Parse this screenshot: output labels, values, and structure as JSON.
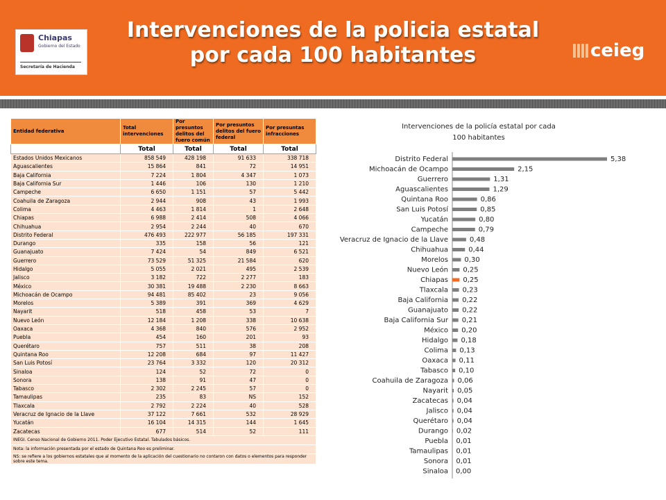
{
  "header": {
    "title": "Intervenciones de la policia estatal  por cada 100 habitantes",
    "logo_name": "Chiapas",
    "logo_subtitle": "Gobierno del Estado",
    "logo_department": "Secretaría de Hacienda",
    "brand": "ceieg"
  },
  "table": {
    "header": [
      "Entidad federativa",
      "Total intervenciones",
      "Por presuntos delitos del fuero común",
      "Por presuntos delitos del fuero federal",
      "Por presuntas infracciones"
    ],
    "subheader": [
      "Total",
      "Total",
      "Total",
      "Total"
    ],
    "rows": [
      [
        "Estados Unidos Mexicanos",
        "858 549",
        "428 198",
        "91 633",
        "338 718"
      ],
      [
        "Aguascalientes",
        "15 864",
        "841",
        "72",
        "14 951"
      ],
      [
        "Baja California",
        "7 224",
        "1 804",
        "4 347",
        "1 073"
      ],
      [
        "Baja California Sur",
        "1 446",
        "106",
        "130",
        "1 210"
      ],
      [
        "Campeche",
        "6 650",
        "1 151",
        "57",
        "5 442"
      ],
      [
        "Coahuila de Zaragoza",
        "2 944",
        "908",
        "43",
        "1 993"
      ],
      [
        "Colima",
        "4 463",
        "1 814",
        "1",
        "2 648"
      ],
      [
        "Chiapas",
        "6 988",
        "2 414",
        "508",
        "4 066"
      ],
      [
        "Chihuahua",
        "2 954",
        "2 244",
        "40",
        "670"
      ],
      [
        "Distrito Federal",
        "476 493",
        "222 977",
        "56 185",
        "197 331"
      ],
      [
        "Durango",
        "335",
        "158",
        "56",
        "121"
      ],
      [
        "Guanajuato",
        "7 424",
        "54",
        "849",
        "6 521"
      ],
      [
        "Guerrero",
        "73 529",
        "51 325",
        "21 584",
        "620"
      ],
      [
        "Hidalgo",
        "5 055",
        "2 021",
        "495",
        "2 539"
      ],
      [
        "Jalisco",
        "3 182",
        "722",
        "2 277",
        "183"
      ],
      [
        "México",
        "30 381",
        "19 488",
        "2 230",
        "8 663"
      ],
      [
        "Michoacán de Ocampo",
        "94 481",
        "85 402",
        "23",
        "9 056"
      ],
      [
        "Morelos",
        "5 389",
        "391",
        "369",
        "4 629"
      ],
      [
        "Nayarit",
        "518",
        "458",
        "53",
        "7"
      ],
      [
        "Nuevo León",
        "12 184",
        "1 208",
        "338",
        "10 638"
      ],
      [
        "Oaxaca",
        "4 368",
        "840",
        "576",
        "2 952"
      ],
      [
        "Puebla",
        "454",
        "160",
        "201",
        "93"
      ],
      [
        "Querétaro",
        "757",
        "511",
        "38",
        "208"
      ],
      [
        "Quintana Roo",
        "12 208",
        "684",
        "97",
        "11 427"
      ],
      [
        "San Luis Potosí",
        "23 764",
        "3 332",
        "120",
        "20 312"
      ],
      [
        "Sinaloa",
        "124",
        "52",
        "72",
        "0"
      ],
      [
        "Sonora",
        "138",
        "91",
        "47",
        "0"
      ],
      [
        "Tabasco",
        "2 302",
        "2 245",
        "57",
        "0"
      ],
      [
        "Tamaulipas",
        "235",
        "83",
        "NS",
        "152"
      ],
      [
        "Tlaxcala",
        "2 792",
        "2 224",
        "40",
        "528"
      ],
      [
        "Veracruz de Ignacio de la Llave",
        "37 122",
        "7 661",
        "532",
        "28 929"
      ],
      [
        "Yucatán",
        "16 104",
        "14 315",
        "144",
        "1 645"
      ],
      [
        "Zacatecas",
        "677",
        "514",
        "52",
        "111"
      ]
    ],
    "notes": [
      "INEGI. Censo Nacional de Gobierno 2011. Poder Ejecutivo Estatal. Tabulados básicos.",
      "Nota: la información presentada por el estado de Quintana Roo es preliminar.",
      "NS: se refiere a los gobiernos estatales que al momento de la aplicación del cuestionario no contaron con datos o elementos para responder sobre este tema."
    ]
  },
  "chart_data": {
    "type": "bar",
    "orientation": "horizontal",
    "title": "Intervenciones de la policía estatal  por cada 100 habitantes",
    "categories": [
      "Distrito Federal",
      "Michoacán de Ocampo",
      "Guerrero",
      "Aguascalientes",
      "Quintana Roo",
      "San Luis Potosí",
      "Yucatán",
      "Campeche",
      "Veracruz de Ignacio de la Llave",
      "Chihuahua",
      "Morelos",
      "Nuevo León",
      "Chiapas",
      "Tlaxcala",
      "Baja California",
      "Guanajuato",
      "Baja California Sur",
      "México",
      "Hidalgo",
      "Colima",
      "Oaxaca",
      "Tabasco",
      "Coahuila de Zaragoza",
      "Nayarit",
      "Zacatecas",
      "Jalisco",
      "Querétaro",
      "Durango",
      "Puebla",
      "Tamaulipas",
      "Sonora",
      "Sinaloa"
    ],
    "values": [
      5.38,
      2.15,
      1.31,
      1.29,
      0.86,
      0.85,
      0.8,
      0.79,
      0.48,
      0.44,
      0.3,
      0.25,
      0.25,
      0.23,
      0.22,
      0.22,
      0.21,
      0.2,
      0.18,
      0.13,
      0.11,
      0.1,
      0.06,
      0.05,
      0.04,
      0.04,
      0.04,
      0.02,
      0.01,
      0.01,
      0.01,
      0.0
    ],
    "value_labels": [
      "5,38",
      "2,15",
      "1,31",
      "1,29",
      "0,86",
      "0,85",
      "0,80",
      "0,79",
      "0,48",
      "0,44",
      "0,30",
      "0,25",
      "0,25",
      "0,23",
      "0,22",
      "0,22",
      "0,21",
      "0,20",
      "0,18",
      "0,13",
      "0,11",
      "0,10",
      "0,06",
      "0,05",
      "0,04",
      "0,04",
      "0,04",
      "0,02",
      "0,01",
      "0,01",
      "0,01",
      "0,00"
    ],
    "color": "#7f7f7f",
    "highlight_color": "#ef6b22",
    "highlight": "Chiapas"
  }
}
